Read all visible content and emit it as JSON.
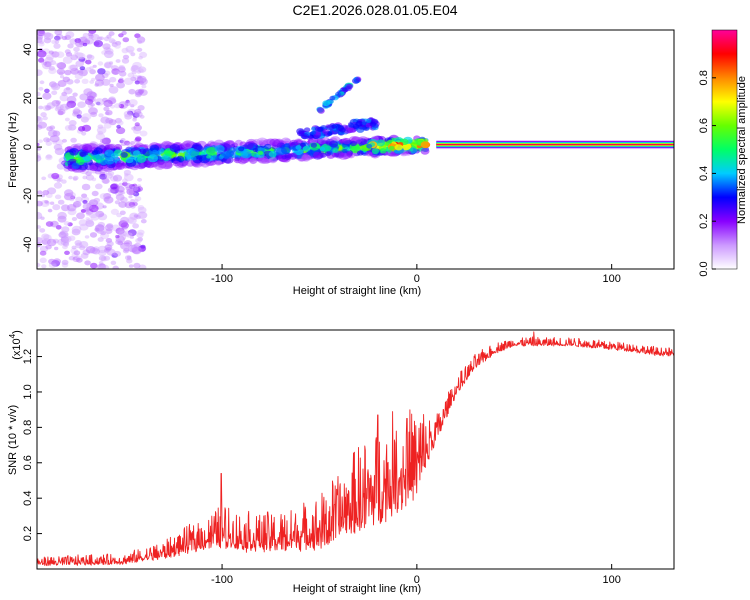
{
  "title": "C2E1.2026.028.01.05.E04",
  "chart_data": [
    {
      "type": "heatmap",
      "xlabel": "Height of straight line (km)",
      "ylabel": "Frequency (Hz)",
      "xlim": [
        -195,
        132
      ],
      "ylim": [
        -50,
        48
      ],
      "xticks": [
        -100,
        0,
        100
      ],
      "yticks": [
        -40,
        -20,
        0,
        20,
        40
      ],
      "colorbar": {
        "label": "Normalized spectral amplitude",
        "range": [
          0,
          1
        ],
        "ticks": [
          "0.0",
          "0.2",
          "0.4",
          "0.6",
          "0.8"
        ],
        "tick_values": [
          0.0,
          0.2,
          0.4,
          0.6,
          0.8
        ],
        "colors": [
          "#ffffff",
          "#cc99ff",
          "#8800ff",
          "#0000ff",
          "#00ccff",
          "#00ff66",
          "#66ff00",
          "#ffff00",
          "#ff8800",
          "#ff0000",
          "#ff0099"
        ]
      },
      "features": {
        "noise_region_x": [
          -195,
          -140
        ],
        "main_trace": {
          "x_start": -180,
          "x_end": 5,
          "freq_start": -5,
          "freq_end": 1
        },
        "upper_streak": {
          "x_start": -60,
          "x_end": -20,
          "freq_start": 5,
          "freq_end": 10
        },
        "diagonal_echo": {
          "x_start": -50,
          "x_end": -30,
          "freq_start": 15,
          "freq_end": 28
        },
        "steady_line": {
          "x_start": 10,
          "x_end": 132,
          "freq": 1,
          "amplitude": 0.95
        }
      }
    },
    {
      "type": "line",
      "xlabel": "Height of straight line (km)",
      "ylabel": "SNR (10 * v/v)",
      "multiplier_label": "(x10",
      "multiplier_exp": "4",
      "multiplier_close": ")",
      "xlim": [
        -195,
        132
      ],
      "ylim": [
        0,
        13500
      ],
      "xticks": [
        -100,
        0,
        100
      ],
      "yticks": [
        2000,
        4000,
        6000,
        8000,
        10000,
        12000
      ],
      "ytick_labels": [
        "0.2",
        "0.4",
        "0.6",
        "0.8",
        "1.0",
        "1.2"
      ],
      "series": [
        {
          "name": "SNR",
          "color": "#ee2222",
          "envelope": {
            "x": [
              -195,
              -150,
              -130,
              -110,
              -100,
              -90,
              -70,
              -50,
              -40,
              -30,
              -20,
              -10,
              0,
              10,
              20,
              30,
              40,
              50,
              60,
              70,
              80,
              90,
              100,
              110,
              120,
              132
            ],
            "base": [
              300,
              400,
              800,
              1500,
              1800,
              1500,
              1500,
              1800,
              2500,
              3200,
              3800,
              4500,
              5200,
              7500,
              10000,
              11500,
              12300,
              12700,
              12700,
              12700,
              12700,
              12600,
              12500,
              12400,
              12200,
              12100
            ],
            "amp": [
              250,
              300,
              500,
              900,
              1200,
              1100,
              1100,
              1500,
              1900,
              2400,
              2700,
              2800,
              2600,
              800,
              500,
              400,
              300,
              250,
              250,
              250,
              250,
              250,
              250,
              250,
              250,
              250
            ]
          },
          "peaks": [
            {
              "x": -100.5,
              "y": 5400
            },
            {
              "x": -20,
              "y": 8700
            },
            {
              "x": -5,
              "y": 8500
            },
            {
              "x": 10,
              "y": 8000
            },
            {
              "x": 60,
              "y": 13400
            }
          ]
        }
      ]
    }
  ]
}
